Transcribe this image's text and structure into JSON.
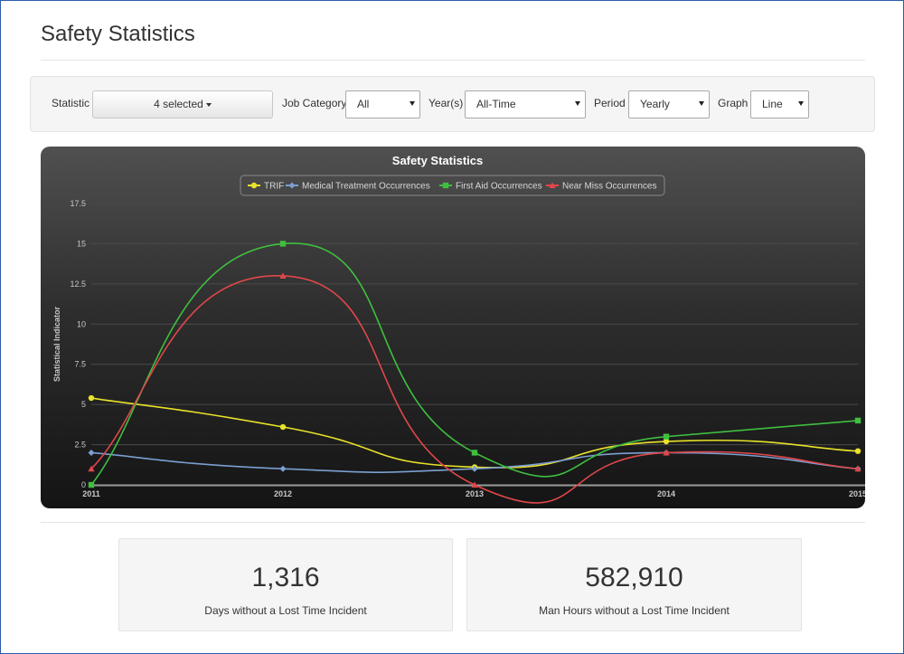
{
  "page": {
    "title": "Safety Statistics"
  },
  "filters": {
    "statistic": {
      "label": "Statistic",
      "value": "4 selected"
    },
    "job_category": {
      "label": "Job Category",
      "value": "All"
    },
    "years": {
      "label": "Year(s)",
      "value": "All-Time"
    },
    "period": {
      "label": "Period",
      "value": "Yearly"
    },
    "graph": {
      "label": "Graph",
      "value": "Line"
    }
  },
  "chart_data": {
    "type": "line",
    "title": "Safety Statistics",
    "ylabel": "Statistical Indicator",
    "xlabel": "",
    "x": [
      "2011",
      "2012",
      "2013",
      "2014",
      "2015"
    ],
    "ylim": [
      0,
      17.5
    ],
    "yticks": [
      "0",
      "2.5",
      "5",
      "7.5",
      "10",
      "12.5",
      "15",
      "17.5"
    ],
    "grid": true,
    "smooth": true,
    "legend_position": "top",
    "series": [
      {
        "name": "TRIF",
        "color": "#e8e22a",
        "marker": "circle",
        "values": [
          5.4,
          3.6,
          1.1,
          2.7,
          2.1
        ]
      },
      {
        "name": "Medical Treatment Occurrences",
        "color": "#7b9fd2",
        "marker": "diamond",
        "values": [
          2,
          1,
          1,
          2,
          1
        ]
      },
      {
        "name": "First Aid Occurrences",
        "color": "#3fbf3f",
        "marker": "square",
        "values": [
          0,
          15,
          2,
          3,
          4
        ]
      },
      {
        "name": "Near Miss Occurrences",
        "color": "#e0474a",
        "marker": "triangle",
        "values": [
          1,
          13,
          0,
          2,
          1
        ]
      }
    ]
  },
  "stats": [
    {
      "value": "1,316",
      "label": "Days without a Lost Time Incident"
    },
    {
      "value": "582,910",
      "label": "Man Hours without a Lost Time Incident"
    }
  ]
}
